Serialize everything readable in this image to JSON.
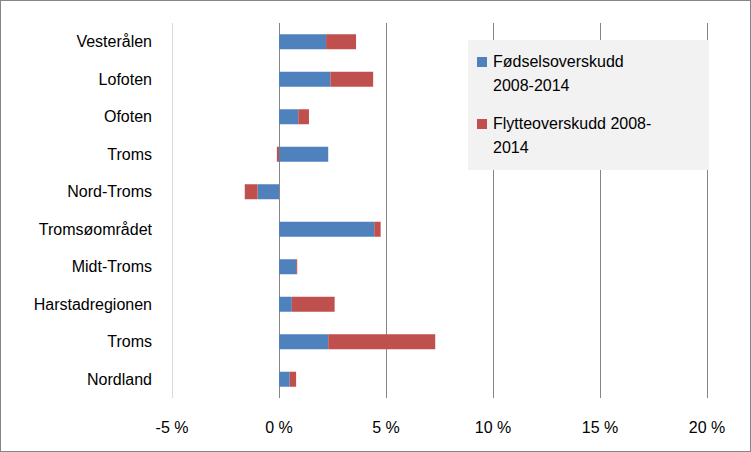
{
  "chart_data": {
    "type": "bar",
    "orientation": "horizontal",
    "stacked": true,
    "categories": [
      "Vesterålen",
      "Lofoten",
      "Ofoten",
      "Troms",
      "Nord-Troms",
      "Tromsøområdet",
      "Midt-Troms",
      "Harstadregionen",
      "Troms",
      "Nordland"
    ],
    "series": [
      {
        "name": "Fødselsoverskudd 2008-2014",
        "color": "#4f81bd",
        "values": [
          2.2,
          2.4,
          0.9,
          2.3,
          -1.0,
          4.45,
          0.8,
          0.6,
          2.3,
          0.5
        ]
      },
      {
        "name": "Flytteoverskudd 2008-2014",
        "color": "#c0504d",
        "values": [
          1.4,
          2.0,
          0.5,
          -0.1,
          -0.6,
          0.3,
          0.05,
          2.0,
          5.0,
          0.3
        ]
      }
    ],
    "xlim": [
      -5,
      20
    ],
    "xticks": [
      {
        "value": -5,
        "label": "-5 %"
      },
      {
        "value": 0,
        "label": "0 %"
      },
      {
        "value": 5,
        "label": "5 %"
      },
      {
        "value": 10,
        "label": "10 %"
      },
      {
        "value": 15,
        "label": "15 %"
      },
      {
        "value": 20,
        "label": "20 %"
      }
    ],
    "grid": true,
    "legend": "top-right"
  }
}
